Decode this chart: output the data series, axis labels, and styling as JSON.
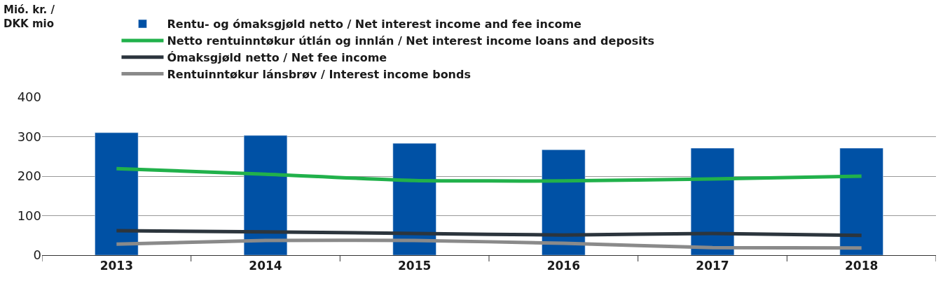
{
  "chart_data": {
    "type": "bar",
    "annotations": [
      "Mió. kr. / DKK mio"
    ],
    "categories": [
      "2013",
      "2014",
      "2015",
      "2016",
      "2017",
      "2018"
    ],
    "series": [
      {
        "name": "Rentu- og ómaksgjøld netto / Net interest income and fee income",
        "color": "#0051a5",
        "values": [
          310,
          303,
          283,
          267,
          271,
          271
        ]
      },
      {
        "name": "Netto rentuinntøkur útlán og innlán / Net interest income loans and deposits",
        "type": "line",
        "color": "#21b14b",
        "values": [
          219,
          205,
          189,
          188,
          193,
          200
        ]
      },
      {
        "name": "Ómaksgjøld netto / Net fee income",
        "type": "line",
        "color": "#2c353d",
        "values": [
          62,
          59,
          55,
          51,
          55,
          50
        ]
      },
      {
        "name": "Rentuinntøkur lánsbrøv / Interest income bonds",
        "type": "line",
        "color": "#8a8a8a",
        "values": [
          28,
          37,
          37,
          30,
          19,
          18
        ]
      }
    ],
    "ylim": [
      0,
      400
    ],
    "yticks": [
      0,
      100,
      200,
      300,
      400
    ],
    "grid": "y",
    "legend": "top left",
    "marker": "none",
    "line_style": "solid"
  }
}
